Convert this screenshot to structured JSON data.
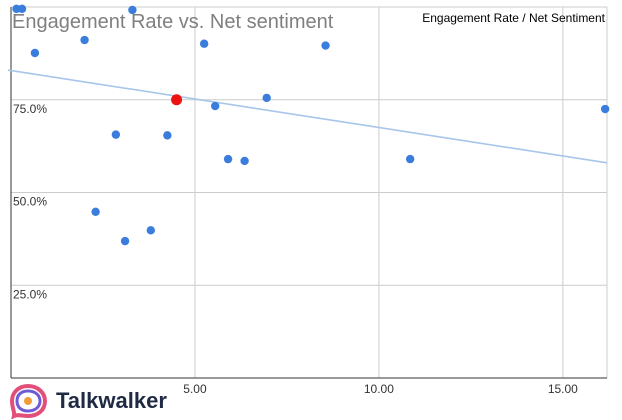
{
  "chart_data": {
    "type": "scatter",
    "title": "Engagement Rate vs. Net sentiment",
    "legend": "Engagement Rate / Net Sentiment",
    "legend_position": "top-right",
    "xlabel": "",
    "ylabel": "",
    "xlim": [
      0,
      16.2
    ],
    "ylim": [
      0,
      100
    ],
    "x_ticks": [
      5,
      10,
      15
    ],
    "x_tick_labels": [
      "5.00",
      "10.00",
      "15.00"
    ],
    "y_ticks": [
      25,
      50,
      75
    ],
    "y_tick_labels": [
      "25.0%",
      "50.0%",
      "75.0%"
    ],
    "grid": true,
    "points": [
      {
        "x": 0.15,
        "y": 99.5
      },
      {
        "x": 0.3,
        "y": 99.5
      },
      {
        "x": 3.3,
        "y": 99.2
      },
      {
        "x": 0.65,
        "y": 87.6
      },
      {
        "x": 2.0,
        "y": 91.1
      },
      {
        "x": 5.25,
        "y": 90.1
      },
      {
        "x": 8.55,
        "y": 89.6
      },
      {
        "x": 5.55,
        "y": 73.3
      },
      {
        "x": 6.95,
        "y": 75.5
      },
      {
        "x": 16.15,
        "y": 72.5
      },
      {
        "x": 2.85,
        "y": 65.6
      },
      {
        "x": 4.25,
        "y": 65.4
      },
      {
        "x": 5.9,
        "y": 59.0
      },
      {
        "x": 6.35,
        "y": 58.5
      },
      {
        "x": 10.85,
        "y": 59.0
      },
      {
        "x": 2.3,
        "y": 44.8
      },
      {
        "x": 3.8,
        "y": 39.8
      },
      {
        "x": 3.1,
        "y": 36.9
      }
    ],
    "highlight_point": {
      "x": 4.5,
      "y": 75.0
    },
    "trendline": {
      "x": [
        0,
        16.2
      ],
      "y": [
        83.0,
        58.0
      ]
    },
    "colors": {
      "point": "#3b7ddd",
      "highlight": "#ee1111",
      "trendline": "#a8c6ea",
      "grid": "#cccccc",
      "axis": "#333333"
    }
  },
  "brand": {
    "name": "Talkwalker",
    "logo_icon": "talkwalker-logo-icon"
  }
}
